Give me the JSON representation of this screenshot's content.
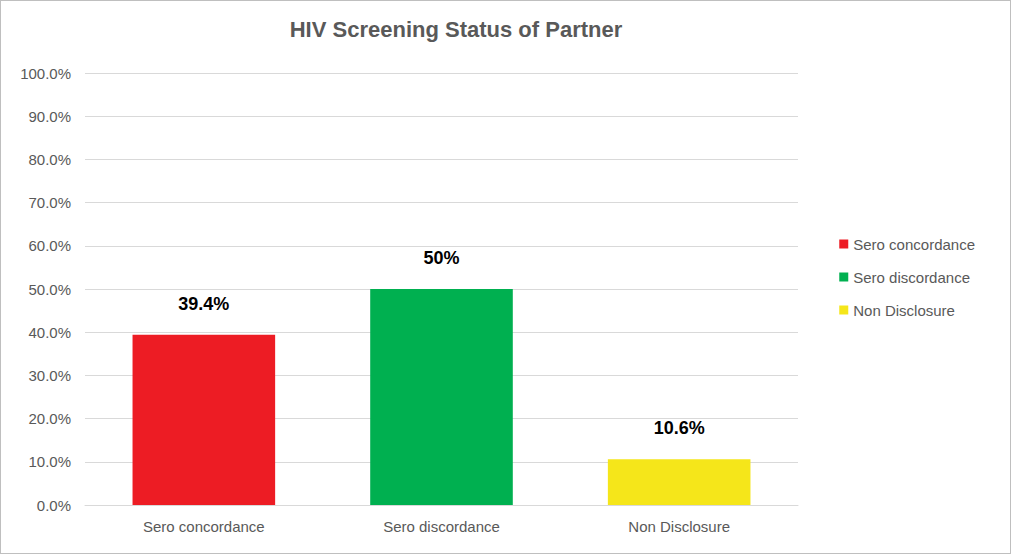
{
  "chart_data": {
    "type": "bar",
    "title": "HIV Screening Status of Partner",
    "categories": [
      "Sero concordance",
      "Sero discordance",
      "Non Disclosure"
    ],
    "values": [
      39.4,
      50,
      10.6
    ],
    "value_labels": [
      "39.4%",
      "50%",
      "10.6%"
    ],
    "colors": [
      "#ed1c24",
      "#00b050",
      "#f5e61a"
    ],
    "ylim": [
      0,
      100
    ],
    "yticks": [
      {
        "value": 0,
        "label": "0.0%"
      },
      {
        "value": 10,
        "label": "10.0%"
      },
      {
        "value": 20,
        "label": "20.0%"
      },
      {
        "value": 30,
        "label": "30.0%"
      },
      {
        "value": 40,
        "label": "40.0%"
      },
      {
        "value": 50,
        "label": "50.0%"
      },
      {
        "value": 60,
        "label": "60.0%"
      },
      {
        "value": 70,
        "label": "70.0%"
      },
      {
        "value": 80,
        "label": "80.0%"
      },
      {
        "value": 90,
        "label": "90.0%"
      },
      {
        "value": 100,
        "label": "100.0%"
      }
    ],
    "grid": true,
    "legend": "right",
    "data_labels": true
  }
}
